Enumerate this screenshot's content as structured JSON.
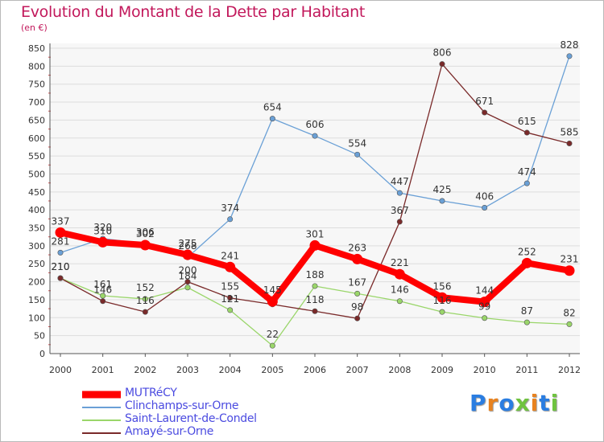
{
  "header": {
    "title": "Evolution du Montant de la Dette par Habitant",
    "subtitle": "(en €)"
  },
  "logo": {
    "text": "Proxiti",
    "colors": [
      "#2a7de1",
      "#e8821f",
      "#2a7de1",
      "#6fc33f",
      "#e8821f",
      "#2a7de1",
      "#6fc33f"
    ]
  },
  "chart_data": {
    "type": "line",
    "title": "Evolution du Montant de la Dette par Habitant",
    "ylabel": "(en €)",
    "xlabel": "",
    "x": [
      "2000",
      "2001",
      "2002",
      "2003",
      "2004",
      "2005",
      "2006",
      "2007",
      "2008",
      "2009",
      "2010",
      "2011",
      "2012"
    ],
    "ylim": [
      0,
      850
    ],
    "yticks": [
      "0",
      "50",
      "100",
      "150",
      "200",
      "250",
      "300",
      "350",
      "400",
      "450",
      "500",
      "550",
      "600",
      "650",
      "700",
      "750",
      "800",
      "850"
    ],
    "grid": "horizontal",
    "legend_position": "bottom-left",
    "series": [
      {
        "name": "MUTRéCY",
        "color": "#ff0000",
        "emphasis": true,
        "values": [
          337,
          310,
          302,
          275,
          241,
          145,
          301,
          263,
          221,
          156,
          144,
          252,
          231
        ],
        "labels": [
          "337",
          "310",
          "302",
          "275",
          "241",
          "145",
          "301",
          "263",
          "221",
          "156",
          "144",
          "252",
          "231"
        ]
      },
      {
        "name": "Clinchamps-sur-Orne",
        "color": "#6aa0d6",
        "emphasis": false,
        "values": [
          281,
          320,
          306,
          268,
          374,
          654,
          606,
          554,
          447,
          425,
          406,
          474,
          828
        ],
        "labels": [
          "281",
          "320",
          "306",
          "268",
          "374",
          "654",
          "606",
          "554",
          "447",
          "425",
          "406",
          "474",
          "828"
        ]
      },
      {
        "name": "Saint-Laurent-de-Condel",
        "color": "#9ad66a",
        "emphasis": false,
        "values": [
          210,
          161,
          152,
          184,
          121,
          22,
          188,
          167,
          146,
          116,
          99,
          87,
          82
        ],
        "labels": [
          "210",
          "161",
          "152",
          "184",
          "121",
          "22",
          "188",
          "167",
          "146",
          "116",
          "99",
          "87",
          "82"
        ]
      },
      {
        "name": "Amayé-sur-Orne",
        "color": "#7a2a2a",
        "emphasis": false,
        "values": [
          210,
          146,
          116,
          200,
          155,
          137,
          118,
          98,
          367,
          806,
          671,
          615,
          585
        ],
        "labels": [
          "210",
          "146",
          "116",
          "200",
          "155",
          "",
          "118",
          "98",
          "367",
          "806",
          "671",
          "615",
          "585"
        ]
      }
    ]
  },
  "legend": {
    "items": [
      "MUTRéCY",
      "Clinchamps-sur-Orne",
      "Saint-Laurent-de-Condel",
      "Amayé-sur-Orne"
    ]
  }
}
